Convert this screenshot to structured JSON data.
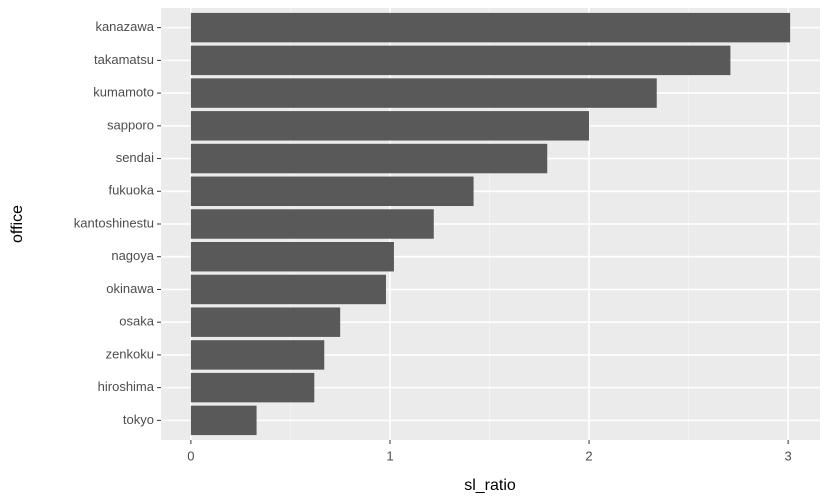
{
  "chart_data": {
    "type": "barh",
    "x_label": "sl_ratio",
    "y_label": "office",
    "categories": [
      "kanazawa",
      "takamatsu",
      "kumamoto",
      "sapporo",
      "sendai",
      "fukuoka",
      "kantoshinestu",
      "nagoya",
      "okinawa",
      "osaka",
      "zenkoku",
      "hiroshima",
      "tokyo"
    ],
    "values": [
      3.01,
      2.71,
      2.34,
      2.0,
      1.79,
      1.42,
      1.22,
      1.02,
      0.98,
      0.75,
      0.67,
      0.62,
      0.33
    ],
    "color": "#595959",
    "xlim": [
      -0.15,
      3.16
    ],
    "xticks": [
      0,
      1,
      2,
      3
    ],
    "xminor": [
      0.5,
      1.5,
      2.5
    ],
    "grid": true,
    "panel_color": "#ebebeb"
  }
}
